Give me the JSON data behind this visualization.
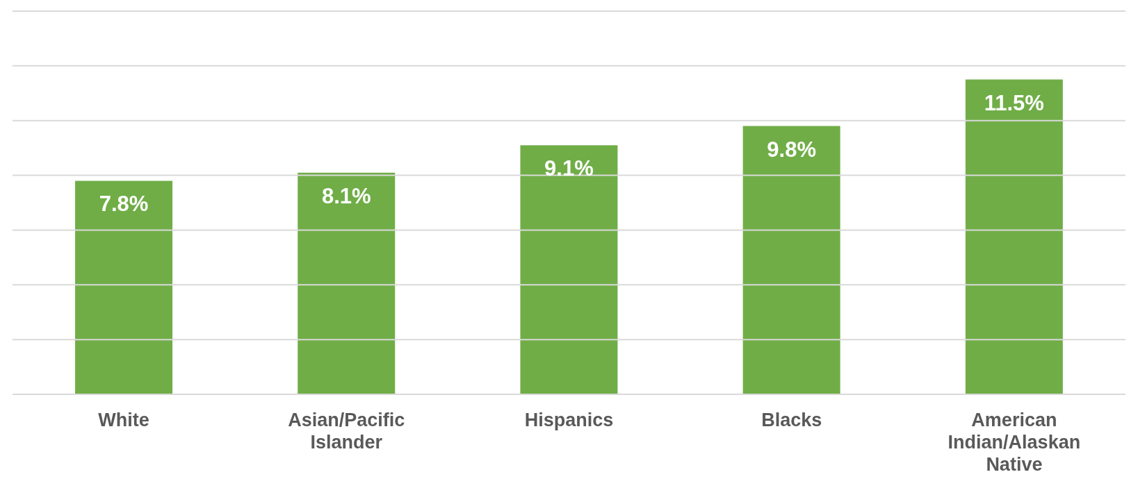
{
  "chart_data": {
    "type": "bar",
    "categories": [
      "White",
      "Asian/Pacific Islander",
      "Hispanics",
      "Blacks",
      "American Indian/Alaskan Native"
    ],
    "values": [
      7.8,
      8.1,
      9.1,
      9.8,
      11.5
    ],
    "value_labels": [
      "7.8%",
      "8.1%",
      "9.1%",
      "9.8%",
      "11.5%"
    ],
    "color": "#70ad47",
    "ylim": [
      0,
      14
    ],
    "yticks": [
      {
        "value": 0,
        "label": null
      },
      {
        "value": 2,
        "label": null
      },
      {
        "value": 4,
        "label": null
      },
      {
        "value": 6,
        "label": null
      },
      {
        "value": 8,
        "label": null
      },
      {
        "value": 10,
        "label": null
      },
      {
        "value": 12,
        "label": null
      },
      {
        "value": 14,
        "label": null
      }
    ],
    "grid": "y",
    "tick_labels": "x"
  }
}
